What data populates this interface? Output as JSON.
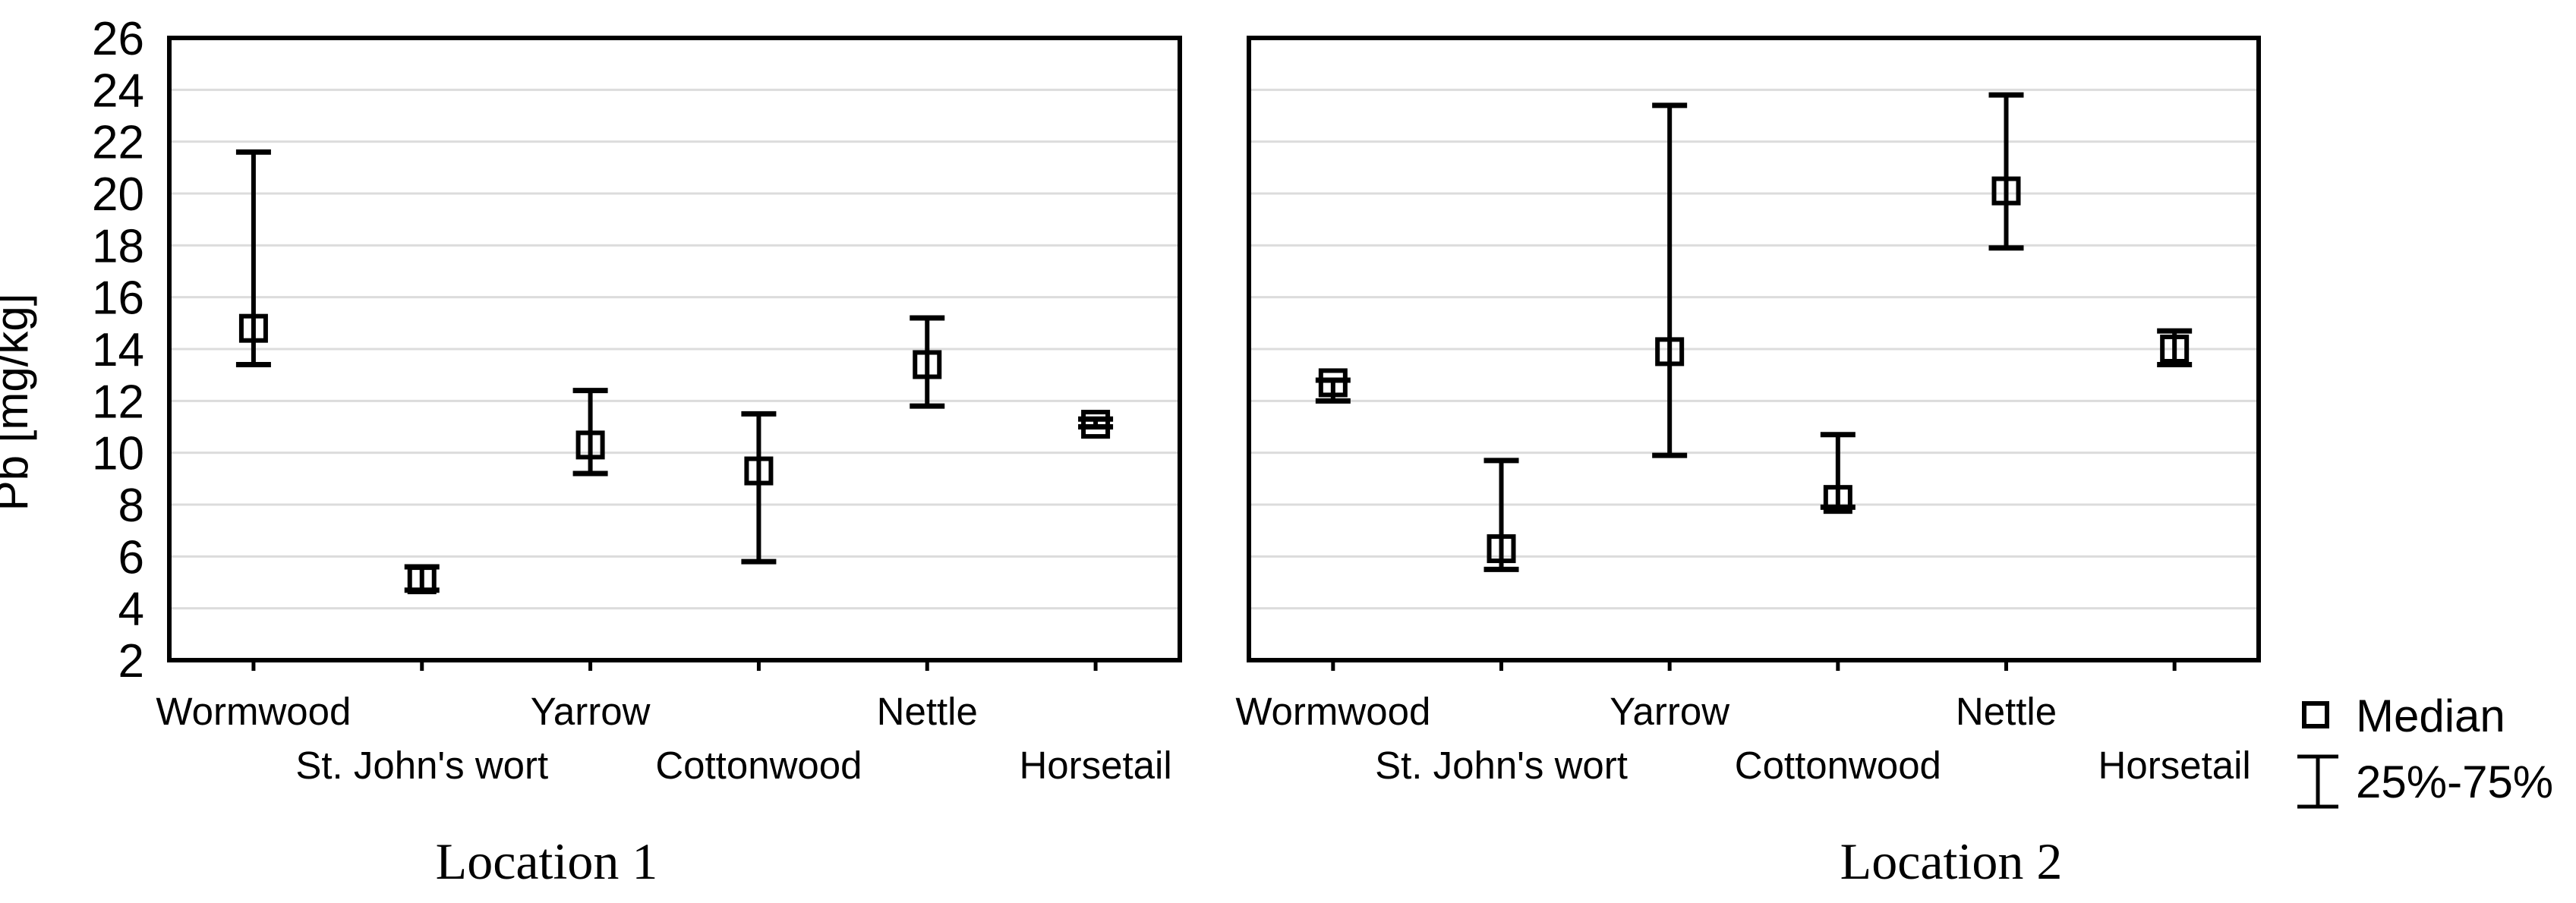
{
  "chart_data": {
    "type": "scatter",
    "subtype": "median-with-iqr-whiskers",
    "ylabel": "Pb [mg/kg]",
    "ylim": [
      2,
      26
    ],
    "ytick_step": 2,
    "y_ticks": [
      2,
      4,
      6,
      8,
      10,
      12,
      14,
      16,
      18,
      20,
      22,
      24,
      26
    ],
    "grid": "horizontal",
    "marker": "open-square",
    "legend": {
      "median_label": "Median",
      "iqr_label": "25%-75%",
      "position": "bottom-right"
    },
    "categories": [
      "Wormwood",
      "St. John's wort",
      "Yarrow",
      "Cottonwood",
      "Nettle",
      "Horsetail"
    ],
    "panels": [
      {
        "title": "Location 1",
        "points": [
          {
            "category": "Wormwood",
            "median": 14.8,
            "q1": 13.4,
            "q3": 21.6
          },
          {
            "category": "St. John's wort",
            "median": 5.1,
            "q1": 4.7,
            "q3": 5.6
          },
          {
            "category": "Yarrow",
            "median": 10.3,
            "q1": 9.2,
            "q3": 12.4
          },
          {
            "category": "Cottonwood",
            "median": 9.3,
            "q1": 5.8,
            "q3": 11.5
          },
          {
            "category": "Nettle",
            "median": 13.4,
            "q1": 11.8,
            "q3": 15.2
          },
          {
            "category": "Horsetail",
            "median": 11.1,
            "q1": 11.0,
            "q3": 11.3
          }
        ]
      },
      {
        "title": "Location 2",
        "points": [
          {
            "category": "Wormwood",
            "median": 12.7,
            "q1": 12.0,
            "q3": 12.8
          },
          {
            "category": "St. John's wort",
            "median": 6.3,
            "q1": 5.5,
            "q3": 9.7
          },
          {
            "category": "Yarrow",
            "median": 13.9,
            "q1": 9.9,
            "q3": 23.4
          },
          {
            "category": "Cottonwood",
            "median": 8.2,
            "q1": 7.9,
            "q3": 10.7
          },
          {
            "category": "Nettle",
            "median": 20.1,
            "q1": 17.9,
            "q3": 23.8
          },
          {
            "category": "Horsetail",
            "median": 14.0,
            "q1": 13.4,
            "q3": 14.7
          }
        ]
      }
    ],
    "colors": {
      "axis": "#000000",
      "gridline": "#dcdcdc",
      "background": "#ffffff",
      "marker": "#000000"
    }
  }
}
